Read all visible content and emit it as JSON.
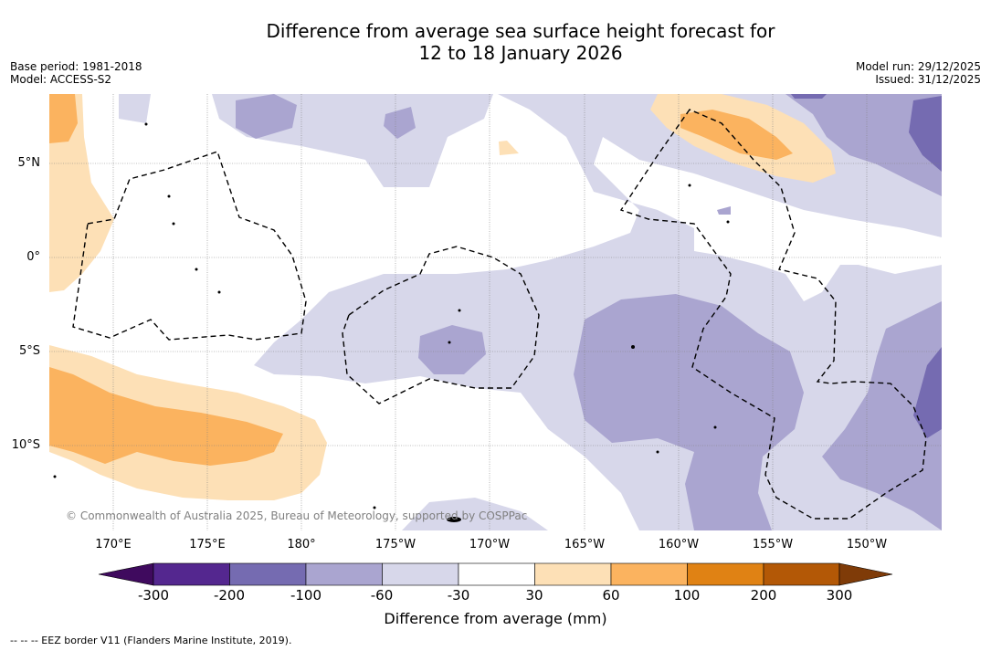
{
  "title_line1": "Difference from average sea surface height forecast for",
  "title_line2": "12 to 18 January 2026",
  "base_period": "Base period: 1981-2018",
  "model": "Model: ACCESS-S2",
  "model_run": "Model run: 29/12/2025",
  "issued": "Issued: 31/12/2025",
  "lon_labels": [
    "170°E",
    "175°E",
    "180°",
    "175°W",
    "170°W",
    "165°W",
    "160°W",
    "155°W",
    "150°W"
  ],
  "lat_labels": [
    "5°N",
    "0°",
    "5°S",
    "10°S"
  ],
  "copyright": "© Commonwealth of Australia 2025, Bureau of Meteorology, supported by COSPPac",
  "colorbar": {
    "title": "Difference from average (mm)",
    "ticks": [
      "-300",
      "-200",
      "-100",
      "-60",
      "-30",
      "30",
      "60",
      "100",
      "200",
      "300"
    ],
    "colors": [
      "#3f0a5e",
      "#54278f",
      "#756bb1",
      "#aaa5d0",
      "#d7d7ea",
      "#ffffff",
      "#fde0b6",
      "#fbb35f",
      "#e08214",
      "#b35806",
      "#7f3b08"
    ]
  },
  "footnote": "--  --  -- EEZ border V11 (Flanders Marine Institute, 2019)."
}
